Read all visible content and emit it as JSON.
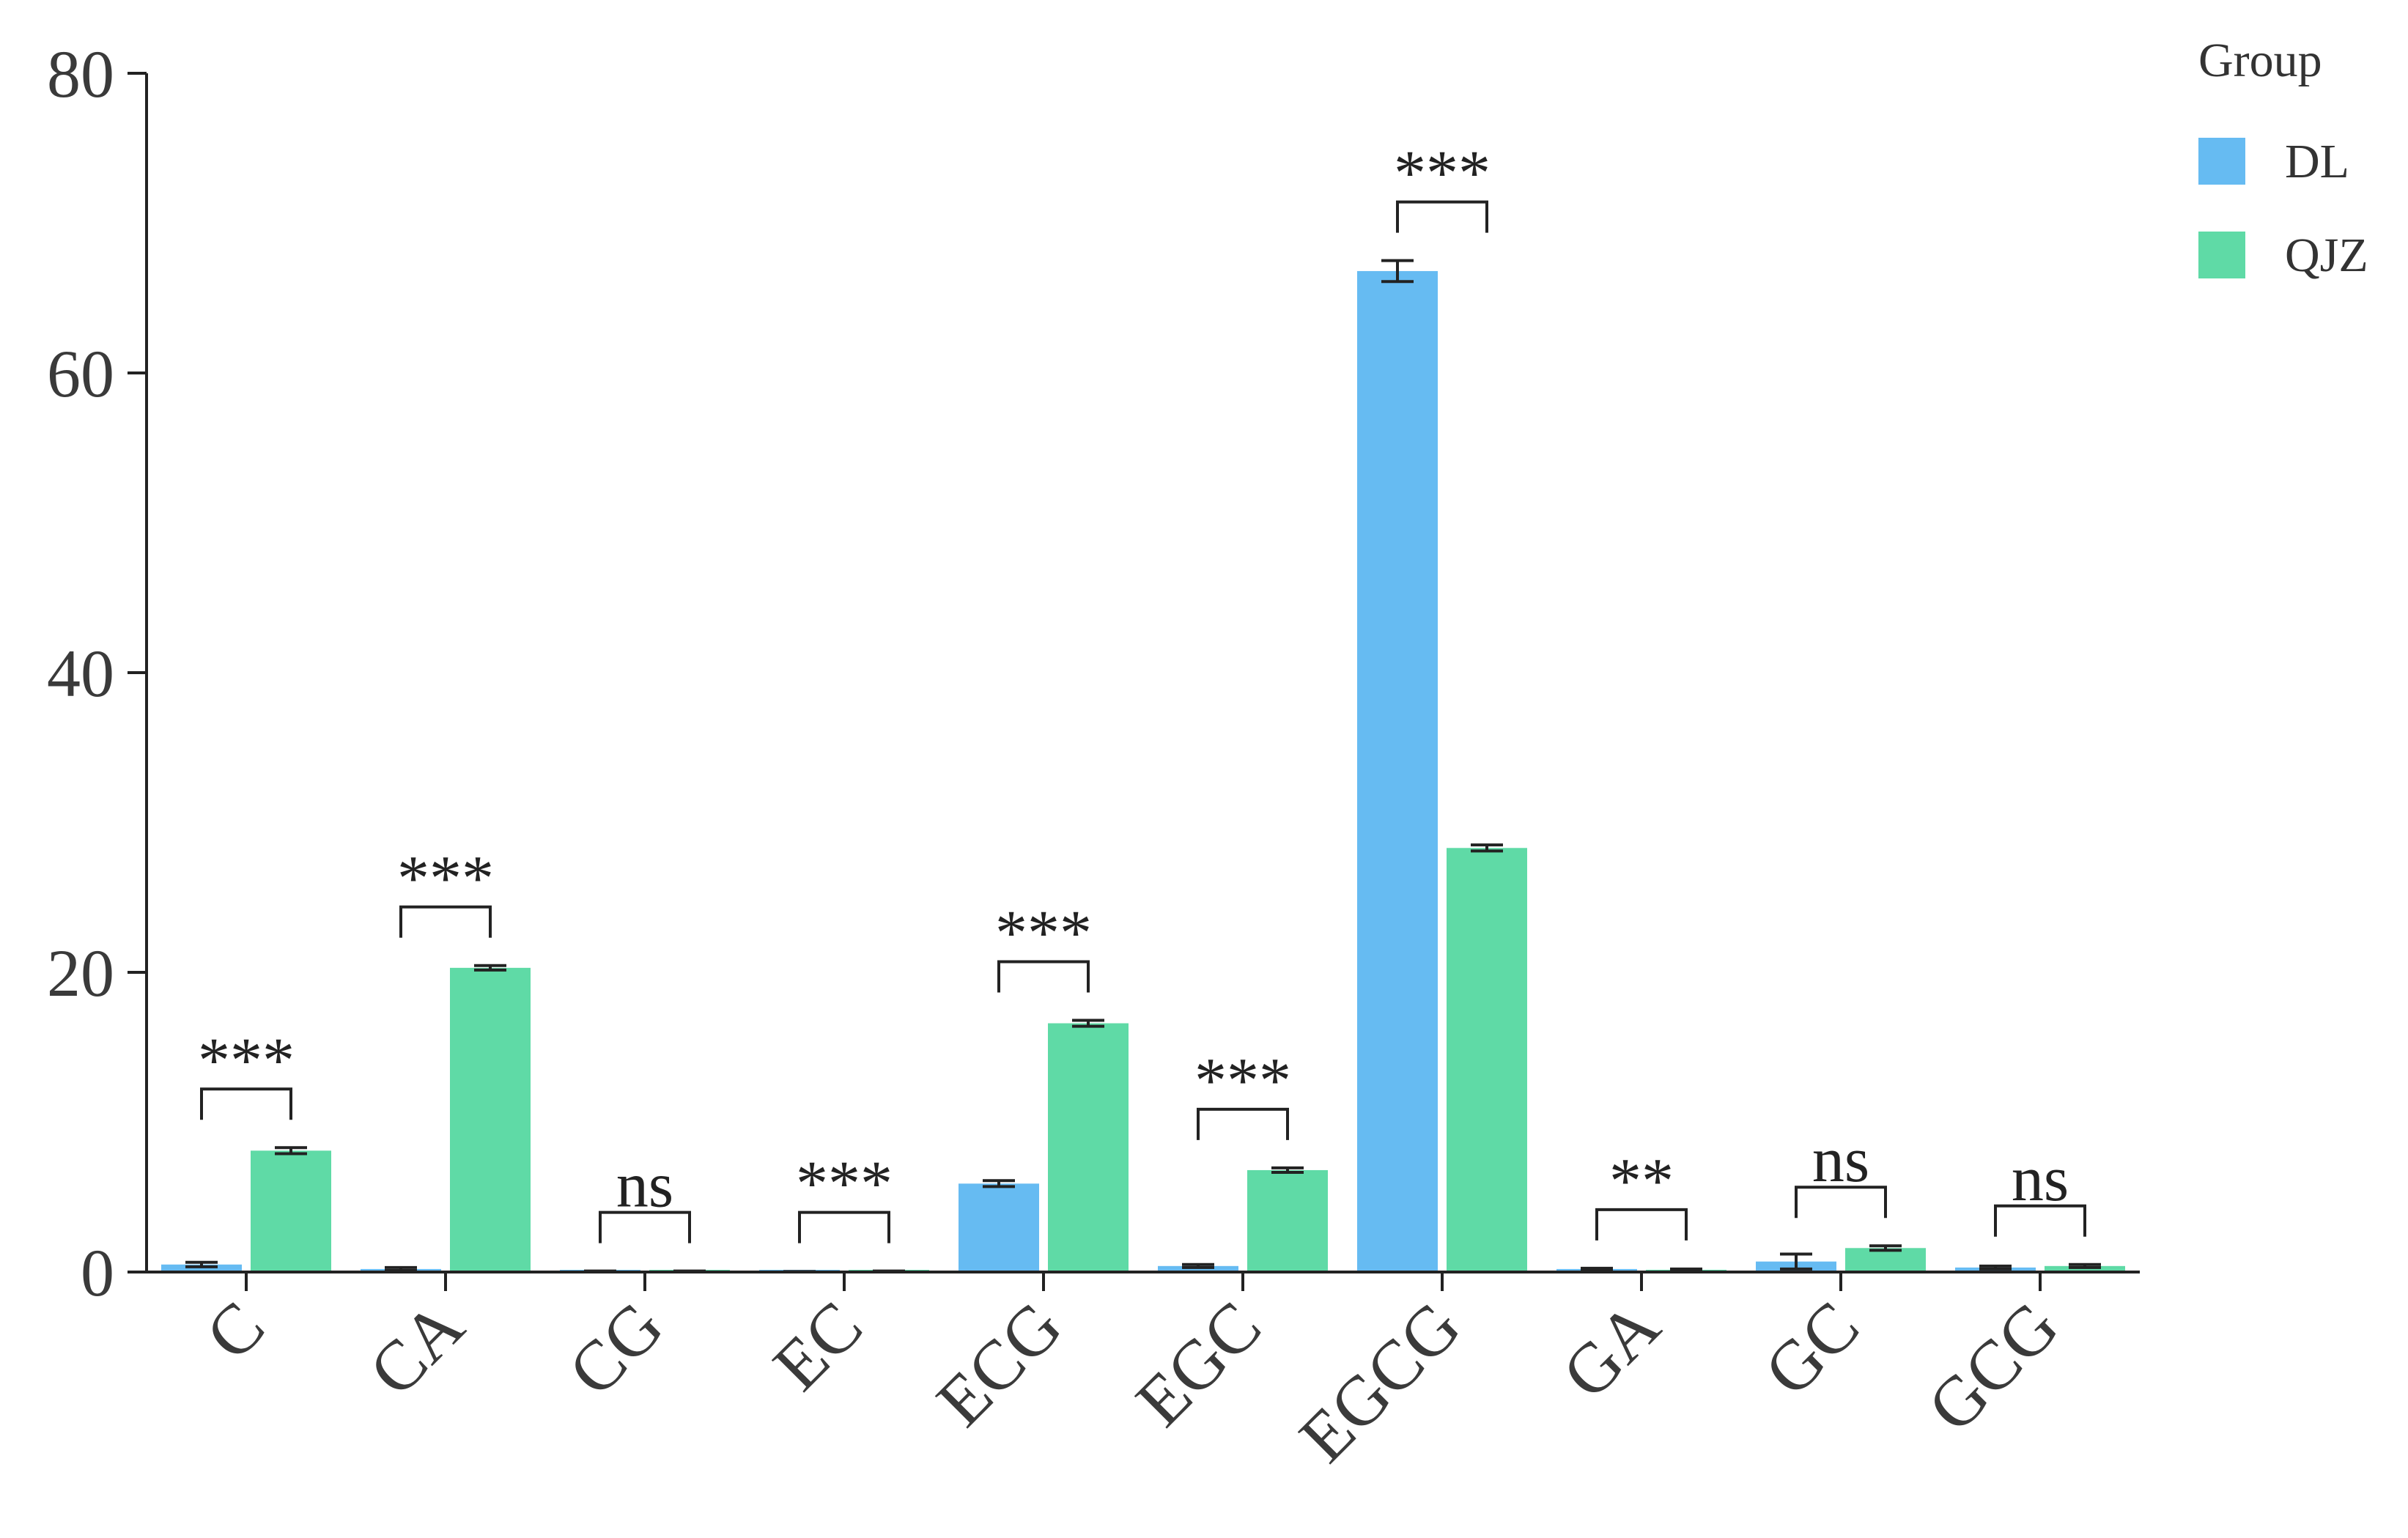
{
  "chart_data": {
    "type": "bar",
    "categories": [
      "C",
      "CA",
      "CG",
      "EC",
      "ECG",
      "EGC",
      "EGCG",
      "GA",
      "GC",
      "GCG"
    ],
    "series": [
      {
        "name": "DL",
        "color": "#66bbf2",
        "values": [
          0.5,
          0.2,
          0.05,
          0.02,
          5.9,
          0.4,
          66.8,
          0.2,
          0.7,
          0.3
        ],
        "errors": [
          0.15,
          0.1,
          0.02,
          0.01,
          0.2,
          0.1,
          0.7,
          0.05,
          0.5,
          0.1
        ]
      },
      {
        "name": "QJZ",
        "color": "#5fdaa6",
        "values": [
          8.1,
          20.3,
          0.05,
          0.05,
          16.6,
          6.8,
          28.3,
          0.15,
          1.6,
          0.4
        ],
        "errors": [
          0.2,
          0.15,
          0.02,
          0.02,
          0.2,
          0.15,
          0.2,
          0.05,
          0.15,
          0.1
        ]
      }
    ],
    "significance": [
      "***",
      "***",
      "ns",
      "***",
      "***",
      "***",
      "***",
      "**",
      "ns",
      "ns"
    ],
    "yticks": [
      0,
      20,
      40,
      60,
      80
    ],
    "ylim": [
      0,
      80
    ],
    "legend": {
      "title": "Group",
      "position": "top-right"
    }
  }
}
